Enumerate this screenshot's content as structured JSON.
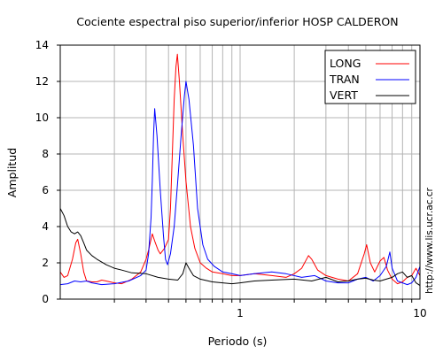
{
  "chart_data": {
    "type": "line",
    "title": "Cociente espectral piso superior/inferior  HOSP CALDERON",
    "xlabel": "Periodo (s)",
    "ylabel": "Amplitud",
    "xscale": "log",
    "xlim": [
      0.1,
      10
    ],
    "ylim": [
      0,
      14
    ],
    "x_ticks": [
      1,
      10
    ],
    "x_tick_labels": [
      "1",
      "10"
    ],
    "y_ticks": [
      0,
      2,
      4,
      6,
      8,
      10,
      12,
      14
    ],
    "y_tick_labels": [
      "0",
      "2",
      "4",
      "6",
      "8",
      "10",
      "12",
      "14"
    ],
    "grid": true,
    "legend_position": "top-right",
    "side_text": "http://www.lis.ucr.ac.cr",
    "series": [
      {
        "name": "LONG",
        "color": "#ff0000",
        "points": [
          [
            0.1,
            1.5
          ],
          [
            0.105,
            1.2
          ],
          [
            0.11,
            1.3
          ],
          [
            0.117,
            2.2
          ],
          [
            0.122,
            3.1
          ],
          [
            0.125,
            3.3
          ],
          [
            0.13,
            2.5
          ],
          [
            0.135,
            1.5
          ],
          [
            0.14,
            1.0
          ],
          [
            0.15,
            0.95
          ],
          [
            0.16,
            0.95
          ],
          [
            0.17,
            1.05
          ],
          [
            0.18,
            1.0
          ],
          [
            0.2,
            0.9
          ],
          [
            0.22,
            0.85
          ],
          [
            0.25,
            1.1
          ],
          [
            0.28,
            1.5
          ],
          [
            0.3,
            2.2
          ],
          [
            0.31,
            2.7
          ],
          [
            0.325,
            3.6
          ],
          [
            0.335,
            3.2
          ],
          [
            0.35,
            2.7
          ],
          [
            0.36,
            2.5
          ],
          [
            0.38,
            2.8
          ],
          [
            0.4,
            3.3
          ],
          [
            0.41,
            5.0
          ],
          [
            0.42,
            8.0
          ],
          [
            0.43,
            11.0
          ],
          [
            0.44,
            12.8
          ],
          [
            0.448,
            13.5
          ],
          [
            0.46,
            12.0
          ],
          [
            0.48,
            9.0
          ],
          [
            0.5,
            6.5
          ],
          [
            0.53,
            4.0
          ],
          [
            0.56,
            2.8
          ],
          [
            0.6,
            2.0
          ],
          [
            0.65,
            1.7
          ],
          [
            0.7,
            1.5
          ],
          [
            0.8,
            1.4
          ],
          [
            0.9,
            1.3
          ],
          [
            1.0,
            1.3
          ],
          [
            1.2,
            1.4
          ],
          [
            1.5,
            1.3
          ],
          [
            1.8,
            1.2
          ],
          [
            2.0,
            1.4
          ],
          [
            2.2,
            1.7
          ],
          [
            2.4,
            2.4
          ],
          [
            2.5,
            2.2
          ],
          [
            2.7,
            1.6
          ],
          [
            3.0,
            1.3
          ],
          [
            3.5,
            1.1
          ],
          [
            4.0,
            1.0
          ],
          [
            4.5,
            1.4
          ],
          [
            4.9,
            2.5
          ],
          [
            5.05,
            3.0
          ],
          [
            5.3,
            2.0
          ],
          [
            5.6,
            1.5
          ],
          [
            6.0,
            2.1
          ],
          [
            6.3,
            2.3
          ],
          [
            6.6,
            1.6
          ],
          [
            7.0,
            1.1
          ],
          [
            7.5,
            0.85
          ],
          [
            8.0,
            0.95
          ],
          [
            8.5,
            1.2
          ],
          [
            9.0,
            1.3
          ],
          [
            9.5,
            1.7
          ],
          [
            10.0,
            1.3
          ]
        ]
      },
      {
        "name": "TRAN",
        "color": "#0000ff",
        "points": [
          [
            0.1,
            0.8
          ],
          [
            0.11,
            0.85
          ],
          [
            0.12,
            1.0
          ],
          [
            0.13,
            0.95
          ],
          [
            0.14,
            1.0
          ],
          [
            0.15,
            0.9
          ],
          [
            0.17,
            0.8
          ],
          [
            0.2,
            0.85
          ],
          [
            0.24,
            1.0
          ],
          [
            0.28,
            1.3
          ],
          [
            0.3,
            1.6
          ],
          [
            0.31,
            2.5
          ],
          [
            0.32,
            4.5
          ],
          [
            0.325,
            6.5
          ],
          [
            0.33,
            9.0
          ],
          [
            0.335,
            10.5
          ],
          [
            0.345,
            9.0
          ],
          [
            0.36,
            6.0
          ],
          [
            0.375,
            3.5
          ],
          [
            0.385,
            2.2
          ],
          [
            0.395,
            1.9
          ],
          [
            0.41,
            2.5
          ],
          [
            0.43,
            4.0
          ],
          [
            0.45,
            6.5
          ],
          [
            0.47,
            9.0
          ],
          [
            0.49,
            11.2
          ],
          [
            0.5,
            12.0
          ],
          [
            0.52,
            11.0
          ],
          [
            0.55,
            8.5
          ],
          [
            0.58,
            5.0
          ],
          [
            0.62,
            3.0
          ],
          [
            0.66,
            2.2
          ],
          [
            0.72,
            1.8
          ],
          [
            0.8,
            1.5
          ],
          [
            0.9,
            1.4
          ],
          [
            1.0,
            1.3
          ],
          [
            1.2,
            1.4
          ],
          [
            1.5,
            1.5
          ],
          [
            1.8,
            1.4
          ],
          [
            2.2,
            1.2
          ],
          [
            2.6,
            1.3
          ],
          [
            3.0,
            1.0
          ],
          [
            3.5,
            0.9
          ],
          [
            4.0,
            0.9
          ],
          [
            4.5,
            1.1
          ],
          [
            5.0,
            1.2
          ],
          [
            5.5,
            1.0
          ],
          [
            6.0,
            1.3
          ],
          [
            6.5,
            1.8
          ],
          [
            6.8,
            2.6
          ],
          [
            7.0,
            1.7
          ],
          [
            7.5,
            1.0
          ],
          [
            8.0,
            0.9
          ],
          [
            8.5,
            0.8
          ],
          [
            9.0,
            0.9
          ],
          [
            9.5,
            1.2
          ],
          [
            10.0,
            1.8
          ]
        ]
      },
      {
        "name": "VERT",
        "color": "#000000",
        "points": [
          [
            0.1,
            5.0
          ],
          [
            0.105,
            4.6
          ],
          [
            0.11,
            4.0
          ],
          [
            0.115,
            3.7
          ],
          [
            0.12,
            3.6
          ],
          [
            0.125,
            3.7
          ],
          [
            0.13,
            3.5
          ],
          [
            0.135,
            3.1
          ],
          [
            0.14,
            2.7
          ],
          [
            0.15,
            2.4
          ],
          [
            0.16,
            2.2
          ],
          [
            0.18,
            1.9
          ],
          [
            0.2,
            1.7
          ],
          [
            0.22,
            1.6
          ],
          [
            0.25,
            1.45
          ],
          [
            0.3,
            1.4
          ],
          [
            0.35,
            1.2
          ],
          [
            0.4,
            1.1
          ],
          [
            0.45,
            1.05
          ],
          [
            0.48,
            1.4
          ],
          [
            0.5,
            2.0
          ],
          [
            0.52,
            1.7
          ],
          [
            0.55,
            1.3
          ],
          [
            0.6,
            1.1
          ],
          [
            0.7,
            0.95
          ],
          [
            0.8,
            0.9
          ],
          [
            0.9,
            0.85
          ],
          [
            1.0,
            0.9
          ],
          [
            1.2,
            1.0
          ],
          [
            1.5,
            1.05
          ],
          [
            2.0,
            1.1
          ],
          [
            2.5,
            1.0
          ],
          [
            3.0,
            1.2
          ],
          [
            3.5,
            0.95
          ],
          [
            4.0,
            1.0
          ],
          [
            4.5,
            1.1
          ],
          [
            5.0,
            1.15
          ],
          [
            5.5,
            1.05
          ],
          [
            6.0,
            1.0
          ],
          [
            6.5,
            1.1
          ],
          [
            7.0,
            1.2
          ],
          [
            7.5,
            1.4
          ],
          [
            8.0,
            1.5
          ],
          [
            8.5,
            1.2
          ],
          [
            9.0,
            1.3
          ],
          [
            9.5,
            0.9
          ],
          [
            10.0,
            0.75
          ]
        ]
      }
    ]
  }
}
